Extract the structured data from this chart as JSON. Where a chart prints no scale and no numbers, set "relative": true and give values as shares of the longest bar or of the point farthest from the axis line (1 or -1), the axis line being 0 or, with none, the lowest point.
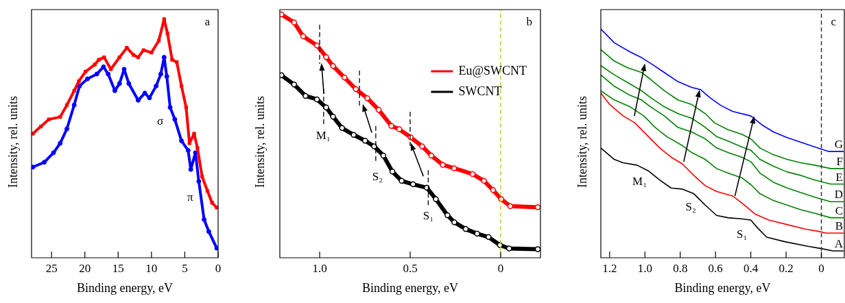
{
  "chart_data": [
    {
      "type": "line",
      "relative": true,
      "xlabel": "Binding energy, eV",
      "ylabel": "Intensity, rel. units",
      "xlim": [
        28,
        0
      ],
      "xticks": [
        25,
        20,
        15,
        10,
        5,
        0
      ],
      "grid": false,
      "legend": false,
      "annotations": [
        "a",
        "σ",
        "π"
      ],
      "series": [
        {
          "color": "#ff0000",
          "marker": "square",
          "x": [
            27.8,
            26.6,
            25.4,
            23.7,
            22.7,
            21.6,
            20.9,
            19.9,
            18.5,
            17.9,
            17.1,
            16.1,
            14.8,
            13.7,
            12.7,
            12.0,
            11.2,
            10.0,
            8.9,
            8.1,
            7.6,
            6.9,
            6.2,
            5.5,
            4.8,
            4.3,
            3.6,
            3.1,
            2.4,
            1.6,
            0.9,
            0.2
          ],
          "values": [
            0.52,
            0.55,
            0.58,
            0.59,
            0.64,
            0.7,
            0.74,
            0.78,
            0.81,
            0.83,
            0.84,
            0.79,
            0.84,
            0.88,
            0.85,
            0.84,
            0.87,
            0.86,
            0.91,
            1.0,
            0.94,
            0.83,
            0.82,
            0.72,
            0.63,
            0.48,
            0.52,
            0.46,
            0.34,
            0.28,
            0.23,
            0.21
          ]
        },
        {
          "color": "#0000ff",
          "marker": "circle",
          "x": [
            27.8,
            26.1,
            24.7,
            23.7,
            22.7,
            21.6,
            20.8,
            19.6,
            18.2,
            17.2,
            16.5,
            15.5,
            14.8,
            14.1,
            13.4,
            12.0,
            11.0,
            10.3,
            9.3,
            8.6,
            8.1,
            7.7,
            7.2,
            6.5,
            5.5,
            4.5,
            4.1,
            3.4,
            2.9,
            2.1,
            1.4,
            0.2
          ],
          "values": [
            0.38,
            0.4,
            0.44,
            0.48,
            0.54,
            0.64,
            0.72,
            0.75,
            0.77,
            0.8,
            0.77,
            0.7,
            0.73,
            0.79,
            0.73,
            0.66,
            0.69,
            0.67,
            0.72,
            0.77,
            0.84,
            0.76,
            0.63,
            0.58,
            0.49,
            0.45,
            0.37,
            0.44,
            0.32,
            0.16,
            0.11,
            0.04
          ]
        }
      ]
    },
    {
      "type": "line",
      "relative": true,
      "xlabel": "Binding energy, eV",
      "ylabel": "Intensity, rel. units",
      "xlim": [
        1.22,
        -0.22
      ],
      "xticks": [
        {
          "value": 1,
          "label": "1.0"
        },
        0.5,
        0
      ],
      "grid": false,
      "legend": "top right",
      "marker": "circle",
      "annotations": [
        "b",
        "M₁",
        "S₂",
        "S₁"
      ],
      "ref_lines": [
        {
          "axis": "x",
          "value": 0,
          "color": "#c8c832",
          "line_style": "dashed"
        }
      ],
      "series": [
        {
          "name": "Eu@SWCNT",
          "color": "#ff0000",
          "x": [
            1.211,
            1.141,
            1.091,
            1.015,
            0.964,
            0.926,
            0.863,
            0.8,
            0.737,
            0.674,
            0.604,
            0.56,
            0.497,
            0.434,
            0.383,
            0.32,
            0.257,
            0.155,
            0.092,
            0.042,
            -0.003,
            -0.053,
            -0.205
          ],
          "values": [
            1.0,
            0.967,
            0.91,
            0.873,
            0.825,
            0.788,
            0.741,
            0.693,
            0.656,
            0.608,
            0.542,
            0.528,
            0.495,
            0.458,
            0.42,
            0.382,
            0.368,
            0.344,
            0.316,
            0.278,
            0.241,
            0.212,
            0.208
          ]
        },
        {
          "name": "SWCNT",
          "color": "#000000",
          "x": [
            1.211,
            1.141,
            1.078,
            1.015,
            0.964,
            0.926,
            0.876,
            0.812,
            0.749,
            0.699,
            0.648,
            0.598,
            0.547,
            0.484,
            0.408,
            0.358,
            0.294,
            0.256,
            0.193,
            0.13,
            0.067,
            0.004,
            -0.047,
            -0.205
          ],
          "values": [
            0.75,
            0.712,
            0.665,
            0.651,
            0.618,
            0.58,
            0.533,
            0.505,
            0.481,
            0.458,
            0.42,
            0.354,
            0.316,
            0.302,
            0.288,
            0.241,
            0.175,
            0.146,
            0.118,
            0.099,
            0.085,
            0.052,
            0.038,
            0.035
          ]
        }
      ]
    },
    {
      "type": "line",
      "relative": true,
      "xlabel": "Binding energy, eV",
      "ylabel": "Intensity, rel. units",
      "xlim": [
        1.25,
        -0.13
      ],
      "xticks": [
        1.2,
        {
          "value": 1,
          "label": "1.0"
        },
        0.8,
        0.6,
        0.4,
        0.2,
        0
      ],
      "grid": false,
      "legend": false,
      "annotations": [
        "c",
        "M₁",
        "S₂",
        "S₁"
      ],
      "ref_lines": [
        {
          "axis": "x",
          "value": 0,
          "color": "#333333",
          "line_style": "dashed"
        }
      ],
      "series": [
        {
          "name": "G",
          "color": "#0000ff",
          "x": [
            1.25,
            1.174,
            1.084,
            1.019,
            0.968,
            0.89,
            0.813,
            0.735,
            0.684,
            0.632,
            0.568,
            0.503,
            0.4,
            0.335,
            0.271,
            0.194,
            0.116,
            0.039,
            -0.039,
            -0.124
          ],
          "values": [
            1.0,
            0.94,
            0.9,
            0.875,
            0.85,
            0.81,
            0.77,
            0.745,
            0.735,
            0.7,
            0.665,
            0.64,
            0.62,
            0.58,
            0.55,
            0.525,
            0.505,
            0.485,
            0.465,
            0.465
          ]
        },
        {
          "name": "F",
          "color": "#008000",
          "x": [
            1.25,
            1.174,
            1.097,
            1.019,
            0.968,
            0.89,
            0.813,
            0.735,
            0.658,
            0.606,
            0.529,
            0.452,
            0.4,
            0.348,
            0.271,
            0.194,
            0.116,
            0.039,
            -0.052,
            -0.124
          ],
          "values": [
            0.91,
            0.86,
            0.83,
            0.81,
            0.78,
            0.73,
            0.69,
            0.67,
            0.63,
            0.59,
            0.56,
            0.54,
            0.52,
            0.48,
            0.45,
            0.43,
            0.415,
            0.405,
            0.39,
            0.39
          ]
        },
        {
          "name": "E",
          "color": "#008000",
          "x": [
            1.25,
            1.174,
            1.084,
            1.019,
            0.968,
            0.89,
            0.813,
            0.735,
            0.658,
            0.594,
            0.529,
            0.452,
            0.4,
            0.348,
            0.271,
            0.194,
            0.116,
            0.039,
            -0.052,
            -0.124
          ],
          "values": [
            0.84,
            0.8,
            0.76,
            0.73,
            0.7,
            0.66,
            0.63,
            0.61,
            0.57,
            0.53,
            0.51,
            0.485,
            0.47,
            0.43,
            0.4,
            0.375,
            0.36,
            0.34,
            0.322,
            0.322
          ]
        },
        {
          "name": "D",
          "color": "#008000",
          "x": [
            1.25,
            1.174,
            1.084,
            1.019,
            0.968,
            0.89,
            0.813,
            0.735,
            0.658,
            0.594,
            0.529,
            0.452,
            0.4,
            0.348,
            0.271,
            0.194,
            0.116,
            0.039,
            -0.052,
            -0.124
          ],
          "values": [
            0.8,
            0.75,
            0.71,
            0.69,
            0.66,
            0.62,
            0.57,
            0.55,
            0.52,
            0.48,
            0.46,
            0.44,
            0.42,
            0.37,
            0.33,
            0.305,
            0.285,
            0.265,
            0.245,
            0.245
          ]
        },
        {
          "name": "C",
          "color": "#008000",
          "x": [
            1.25,
            1.174,
            1.084,
            1.006,
            0.942,
            0.877,
            0.787,
            0.735,
            0.658,
            0.594,
            0.529,
            0.452,
            0.4,
            0.348,
            0.271,
            0.194,
            0.116,
            0.039,
            -0.052,
            -0.124
          ],
          "values": [
            0.73,
            0.69,
            0.66,
            0.62,
            0.57,
            0.53,
            0.49,
            0.46,
            0.43,
            0.39,
            0.37,
            0.35,
            0.32,
            0.28,
            0.25,
            0.23,
            0.21,
            0.195,
            0.175,
            0.175
          ]
        },
        {
          "name": "B",
          "color": "#ff0000",
          "x": [
            1.25,
            1.2,
            1.123,
            1.058,
            0.981,
            0.916,
            0.852,
            0.787,
            0.723,
            0.658,
            0.594,
            0.503,
            0.452,
            0.374,
            0.297,
            0.194,
            0.09,
            0.013,
            -0.026,
            -0.124
          ],
          "values": [
            0.72,
            0.67,
            0.62,
            0.59,
            0.53,
            0.48,
            0.44,
            0.41,
            0.36,
            0.315,
            0.29,
            0.27,
            0.24,
            0.19,
            0.165,
            0.145,
            0.125,
            0.115,
            0.108,
            0.108
          ]
        },
        {
          "name": "A",
          "color": "#000000",
          "x": [
            1.25,
            1.174,
            1.123,
            1.045,
            0.981,
            0.916,
            0.852,
            0.787,
            0.723,
            0.658,
            0.594,
            0.529,
            0.452,
            0.4,
            0.361,
            0.31,
            0.206,
            0.077,
            0,
            -0.065,
            -0.124
          ],
          "values": [
            0.48,
            0.43,
            0.415,
            0.405,
            0.38,
            0.34,
            0.305,
            0.3,
            0.28,
            0.23,
            0.185,
            0.175,
            0.17,
            0.165,
            0.13,
            0.09,
            0.07,
            0.05,
            0.04,
            0.03,
            0.03
          ]
        }
      ]
    }
  ]
}
